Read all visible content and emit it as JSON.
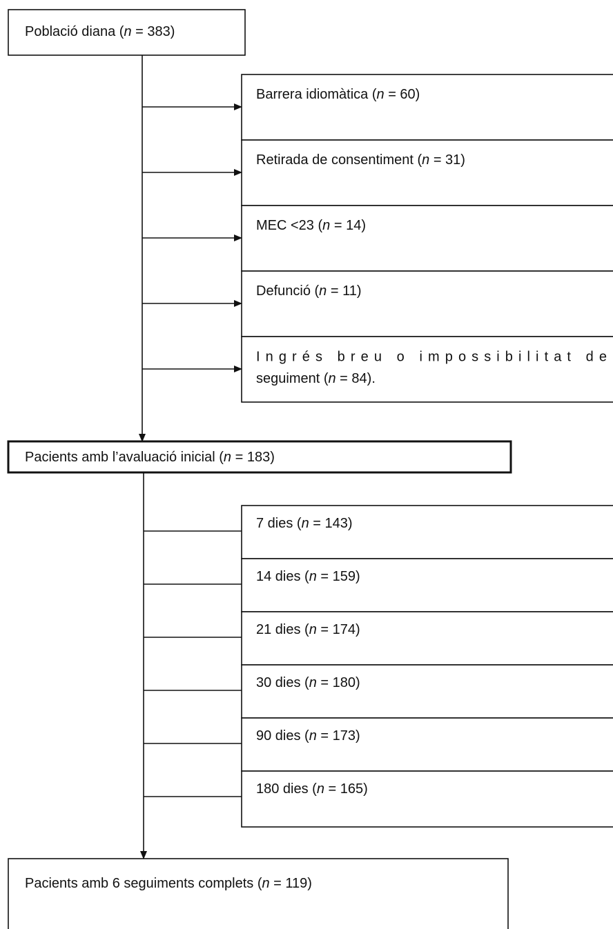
{
  "population": {
    "label": "Població diana (n = 383)"
  },
  "exclusions": [
    {
      "lines": [
        "Barrera idiomàtica (n = 60)"
      ]
    },
    {
      "lines": [
        "Retirada de consentiment (n = 31)"
      ]
    },
    {
      "lines": [
        "MEC <23 (n = 14)"
      ]
    },
    {
      "lines": [
        "Defunció (n = 11)"
      ]
    },
    {
      "lines": [
        "Ingrés breu o impossibilitat de",
        "seguiment (n = 84)."
      ]
    }
  ],
  "initial": {
    "label": "Pacients amb l’avaluació inicial (n = 183)"
  },
  "followups": [
    {
      "label": "7 dies (n = 143)"
    },
    {
      "label": "14 dies (n = 159)"
    },
    {
      "label": "21 dies (n = 174)"
    },
    {
      "label": "30 dies (n = 180)"
    },
    {
      "label": "90 dies (n = 173)"
    },
    {
      "label": "180 dies (n = 165)"
    }
  ],
  "completed": {
    "label": "Pacients amb 6 seguiments complets (n = 119)"
  }
}
